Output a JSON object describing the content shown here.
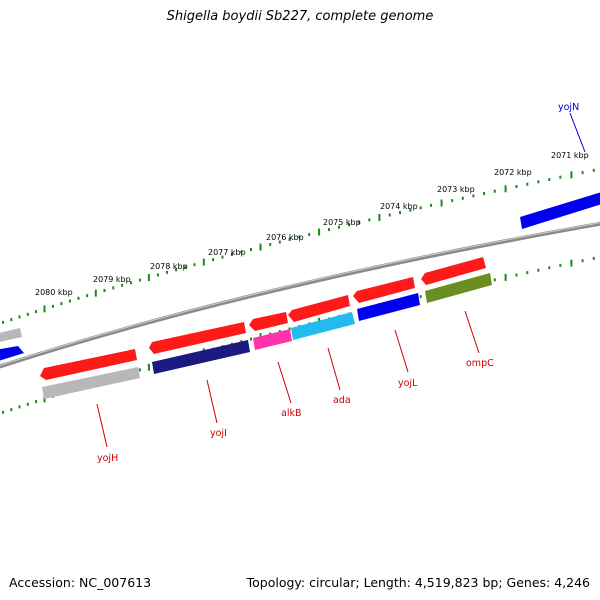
{
  "title": "Shigella boydii Sb227, complete genome",
  "footer": {
    "accession": "Accession: NC_007613",
    "topology": "Topology: circular; Length: 4,519,823 bp; Genes: 4,246"
  },
  "colors": {
    "backbone": "#8a8a8a",
    "tick": "#1a8a1a",
    "label_red": "#cc0000",
    "label_blue": "#0000cc"
  },
  "kbp_labels": [
    "2071 kbp",
    "2072 kbp",
    "2073 kbp",
    "2074 kbp",
    "2075 kbp",
    "2076 kbp",
    "2077 kbp",
    "2078 kbp",
    "2079 kbp",
    "2080 kbp"
  ],
  "gene_labels": [
    {
      "name": "yojN",
      "color": "#0000cc"
    },
    {
      "name": "ompC",
      "color": "#cc0000"
    },
    {
      "name": "yojL",
      "color": "#cc0000"
    },
    {
      "name": "ada",
      "color": "#cc0000"
    },
    {
      "name": "alkB",
      "color": "#cc0000"
    },
    {
      "name": "yojI",
      "color": "#cc0000"
    },
    {
      "name": "yojH",
      "color": "#cc0000"
    }
  ],
  "tracks": {
    "outer_cds": "#ff1a1a",
    "gray_feature": "#b8b8b8",
    "yojN_feature": "#0000ee",
    "yojI_feature": "#1a1a80",
    "alkB_feature": "#ff33aa",
    "ada_feature": "#22bbee",
    "yojL_feature": "#0000ee",
    "ompC_feature": "#6b8e23"
  }
}
